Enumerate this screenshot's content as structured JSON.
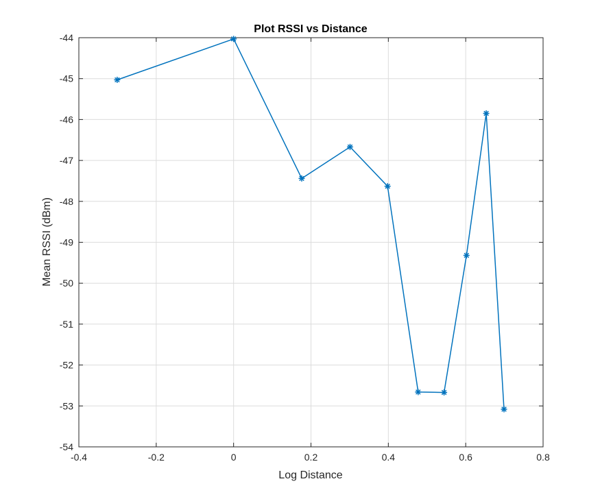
{
  "chart_data": {
    "type": "line",
    "title": "Plot RSSI vs Distance",
    "xlabel": "Log Distance",
    "ylabel": "Mean RSSI (dBm)",
    "xlim": [
      -0.4,
      0.8
    ],
    "ylim": [
      -54,
      -44
    ],
    "xticks": [
      -0.4,
      -0.2,
      0,
      0.2,
      0.4,
      0.6,
      0.8
    ],
    "xtick_labels": [
      "-0.4",
      "-0.2",
      "0",
      "0.2",
      "0.4",
      "0.6",
      "0.8"
    ],
    "yticks": [
      -54,
      -53,
      -52,
      -51,
      -50,
      -49,
      -48,
      -47,
      -46,
      -45,
      -44
    ],
    "ytick_labels": [
      "-54",
      "-53",
      "-52",
      "-51",
      "-50",
      "-49",
      "-48",
      "-47",
      "-46",
      "-45",
      "-44"
    ],
    "grid": true,
    "marker": "asterisk",
    "series": [
      {
        "color": "#0072BD",
        "x": [
          -0.301,
          0.0,
          0.176,
          0.301,
          0.398,
          0.477,
          0.544,
          0.602,
          0.653,
          0.699
        ],
        "y": [
          -45.03,
          -44.03,
          -47.44,
          -46.67,
          -47.63,
          -52.66,
          -52.67,
          -49.32,
          -45.85,
          -53.08
        ]
      }
    ]
  }
}
